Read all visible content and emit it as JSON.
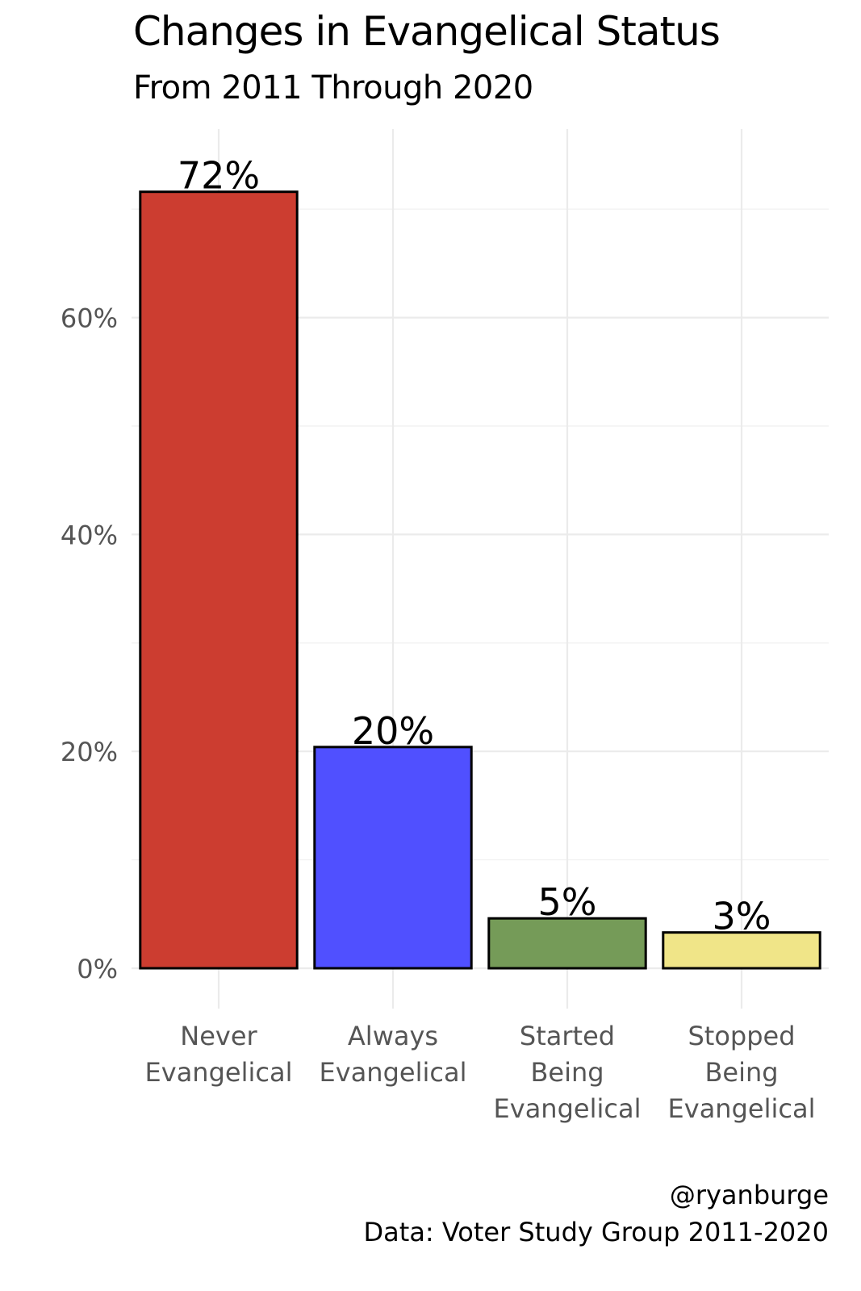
{
  "chart_data": {
    "type": "bar",
    "title": "Changes in Evangelical Status",
    "subtitle": "From 2011 Through 2020",
    "categories": [
      [
        "Never",
        "Evangelical"
      ],
      [
        "Always",
        "Evangelical"
      ],
      [
        "Started",
        "Being",
        "Evangelical"
      ],
      [
        "Stopped",
        "Being",
        "Evangelical"
      ]
    ],
    "values": [
      71.6,
      20.4,
      4.6,
      3.3
    ],
    "data_labels": [
      "72%",
      "20%",
      "5%",
      "3%"
    ],
    "colors": [
      "#cc3d30",
      "#5050ff",
      "#759b58",
      "#f0e588"
    ],
    "yticks": [
      0,
      20,
      40,
      60
    ],
    "ytick_labels": [
      "0%",
      "20%",
      "40%",
      "60%"
    ],
    "ylim": [
      0,
      75
    ],
    "xlabel": "",
    "ylabel": "",
    "grid": true,
    "legend": "none"
  },
  "caption": {
    "handle": "@ryanburge",
    "source": "Data: Voter Study Group 2011-2020"
  }
}
